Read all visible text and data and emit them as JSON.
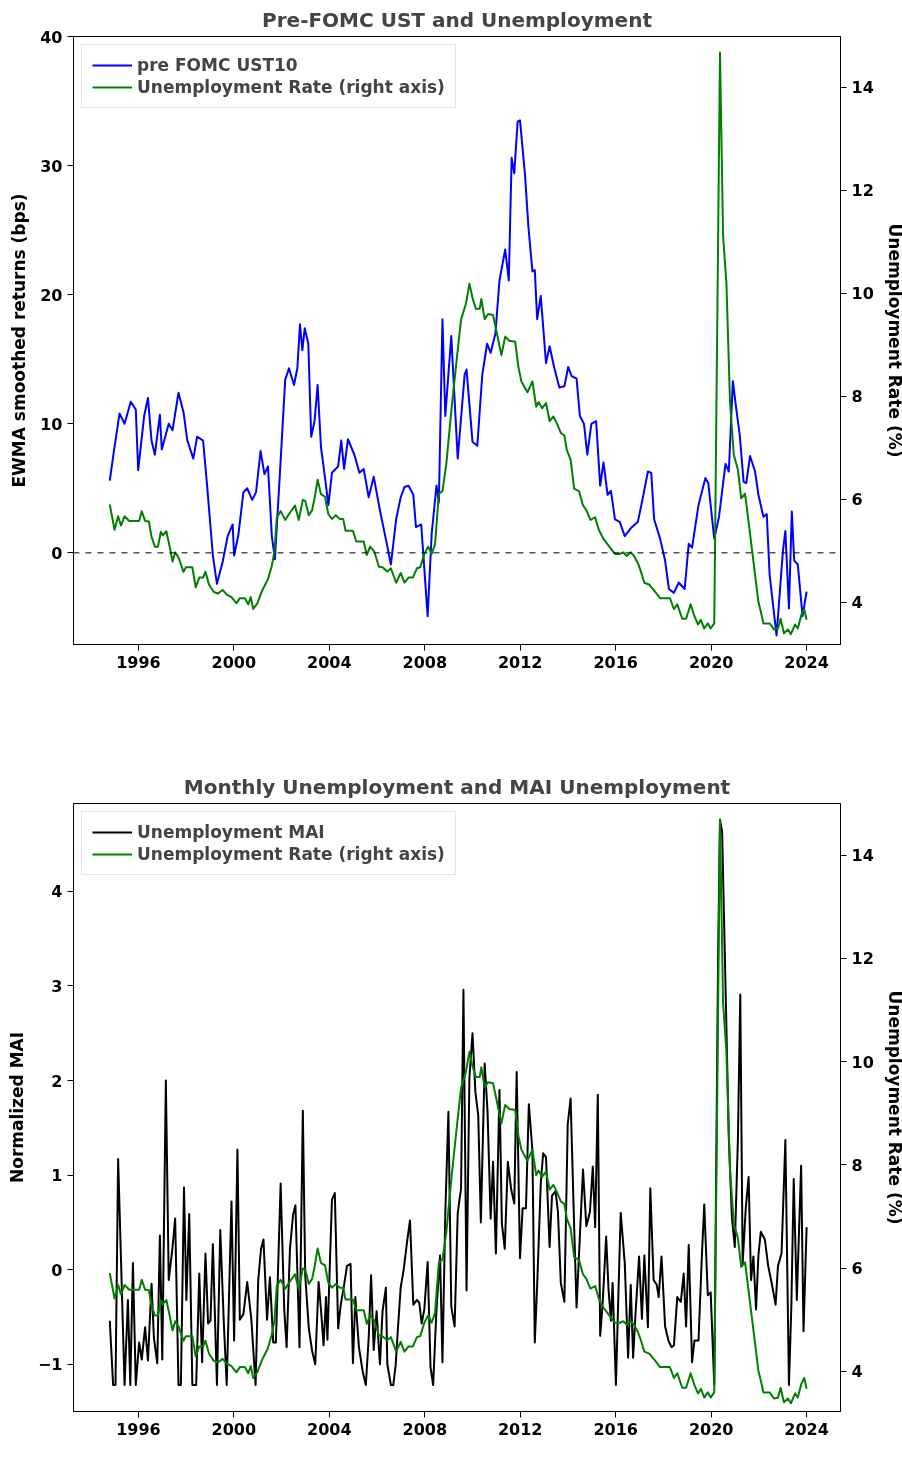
{
  "chart_data": [
    {
      "type": "line",
      "title": "Pre-FOMC UST and Unemployment",
      "ylabel": "EWMA smoothed returns (bps)",
      "y2label": "Unemployment Rate (%)",
      "xlim": [
        1993.28,
        2025.42
      ],
      "xticks": [
        1996,
        2000,
        2004,
        2008,
        2012,
        2016,
        2020,
        2024
      ],
      "ylim": [
        -7.1,
        40
      ],
      "yticks": [
        0,
        10,
        20,
        30,
        40
      ],
      "y2lim": [
        3.18,
        14.99
      ],
      "y2ticks": [
        4,
        6,
        8,
        10,
        12,
        14
      ],
      "grid": false,
      "legend": "top left",
      "ref_lines": [
        {
          "axis": "y",
          "value": 0,
          "color": "#000000",
          "line_style": "dashed"
        }
      ],
      "series": [
        {
          "name": "pre FOMC UST10",
          "color": "#0000ff",
          "x": [
            1994.8,
            1994.96,
            1995.21,
            1995.42,
            1995.68,
            1995.89,
            1995.99,
            1996.24,
            1996.4,
            1996.55,
            1996.69,
            1996.9,
            1996.98,
            1997.27,
            1997.43,
            1997.68,
            1997.89,
            1998.05,
            1998.3,
            1998.46,
            1998.71,
            1998.87,
            1999.12,
            1999.29,
            1999.53,
            1999.74,
            1999.95,
            2000.01,
            2000.19,
            2000.4,
            2000.56,
            2000.77,
            2000.93,
            2001.12,
            2001.28,
            2001.43,
            2001.59,
            2001.72,
            2001.94,
            2002.15,
            2002.31,
            2002.52,
            2002.66,
            2002.77,
            2002.87,
            2002.97,
            2003.12,
            2003.24,
            2003.38,
            2003.51,
            2003.65,
            2003.82,
            2003.96,
            2004.11,
            2004.37,
            2004.5,
            2004.62,
            2004.78,
            2005.05,
            2005.26,
            2005.44,
            2005.65,
            2005.86,
            2006.12,
            2006.43,
            2006.58,
            2006.8,
            2006.99,
            2007.15,
            2007.32,
            2007.52,
            2007.63,
            2007.85,
            2008.12,
            2008.29,
            2008.49,
            2008.59,
            2008.74,
            2008.86,
            2009.11,
            2009.38,
            2009.67,
            2009.75,
            2010.0,
            2010.2,
            2010.41,
            2010.61,
            2010.76,
            2010.96,
            2011.13,
            2011.37,
            2011.52,
            2011.64,
            2011.75,
            2011.89,
            2011.99,
            2012.2,
            2012.34,
            2012.51,
            2012.61,
            2012.71,
            2012.86,
            2013.08,
            2013.23,
            2013.43,
            2013.64,
            2013.85,
            2014.01,
            2014.15,
            2014.36,
            2014.5,
            2014.67,
            2014.81,
            2014.98,
            2015.18,
            2015.35,
            2015.49,
            2015.66,
            2015.8,
            2015.97,
            2016.17,
            2016.38,
            2016.63,
            2016.93,
            2017.14,
            2017.35,
            2017.49,
            2017.61,
            2017.86,
            2018.07,
            2018.23,
            2018.44,
            2018.64,
            2018.89,
            2019.06,
            2019.2,
            2019.47,
            2019.76,
            2019.88,
            2020.13,
            2020.33,
            2020.6,
            2020.74,
            2020.91,
            2021.05,
            2021.2,
            2021.36,
            2021.47,
            2021.63,
            2021.84,
            2021.98,
            2022.19,
            2022.33,
            2022.45,
            2022.74,
            2023.01,
            2023.11,
            2023.26,
            2023.38,
            2023.48,
            2023.63,
            2023.83,
            2024.0
          ],
          "values": [
            5.6,
            7.7,
            10.8,
            10.0,
            11.7,
            11.1,
            6.4,
            10.6,
            12.0,
            8.7,
            7.6,
            10.7,
            8.0,
            10.0,
            9.5,
            12.4,
            10.9,
            8.7,
            7.3,
            9.0,
            8.7,
            5.4,
            -0.2,
            -2.4,
            -0.7,
            1.3,
            2.2,
            -0.2,
            1.4,
            4.7,
            5.0,
            4.1,
            4.7,
            7.9,
            6.1,
            6.7,
            1.3,
            -0.5,
            6.5,
            13.4,
            14.3,
            13.0,
            14.3,
            17.7,
            15.7,
            17.4,
            16.2,
            9.0,
            10.2,
            13.0,
            8.2,
            5.8,
            3.7,
            6.2,
            6.7,
            8.7,
            6.5,
            8.8,
            7.6,
            6.2,
            6.5,
            4.3,
            5.9,
            3.3,
            0.5,
            -0.9,
            2.6,
            4.3,
            5.1,
            5.2,
            4.5,
            2.0,
            2.2,
            -4.9,
            1.5,
            5.2,
            3.9,
            18.1,
            10.6,
            16.8,
            7.3,
            13.8,
            14.2,
            8.6,
            8.3,
            13.8,
            16.2,
            15.5,
            17.0,
            21.1,
            23.5,
            21.1,
            30.6,
            29.4,
            33.4,
            33.5,
            29.3,
            25.3,
            21.8,
            21.9,
            18.1,
            19.9,
            14.7,
            16.0,
            14.3,
            12.8,
            12.9,
            14.4,
            13.7,
            13.5,
            10.6,
            10.0,
            7.6,
            10.0,
            10.2,
            5.2,
            7.0,
            4.5,
            4.8,
            2.6,
            2.4,
            1.3,
            1.9,
            2.4,
            4.3,
            6.3,
            6.2,
            2.6,
            1.1,
            -0.6,
            -2.8,
            -3.1,
            -2.3,
            -2.8,
            0.7,
            0.4,
            3.7,
            5.8,
            5.4,
            1.1,
            2.8,
            6.9,
            6.3,
            13.3,
            11.2,
            9.1,
            5.5,
            5.4,
            7.5,
            6.3,
            4.5,
            2.8,
            3.0,
            -1.7,
            -6.4,
            0.2,
            1.7,
            -4.3,
            3.2,
            -0.6,
            -0.9,
            -4.9,
            -3.0
          ]
        },
        {
          "name": "Unemployment Rate (right axis)",
          "color": "#008000",
          "axis": "y2",
          "x": [
            1994.8,
            1995.0,
            1995.15,
            1995.27,
            1995.42,
            1995.62,
            1996.03,
            1996.14,
            1996.28,
            1996.44,
            1996.55,
            1996.69,
            1996.82,
            1996.94,
            1997.02,
            1997.17,
            1997.31,
            1997.43,
            1997.54,
            1997.68,
            1997.89,
            1997.99,
            1998.26,
            1998.4,
            1998.55,
            1998.71,
            1998.81,
            1998.96,
            1999.16,
            1999.33,
            1999.53,
            1999.7,
            1999.9,
            2000.11,
            2000.25,
            2000.46,
            2000.6,
            2000.71,
            2000.81,
            2000.98,
            2001.18,
            2001.43,
            2001.59,
            2001.7,
            2001.8,
            2001.96,
            2002.15,
            2002.35,
            2002.56,
            2002.72,
            2002.89,
            2002.99,
            2003.14,
            2003.28,
            2003.38,
            2003.51,
            2003.65,
            2003.82,
            2003.96,
            2004.11,
            2004.27,
            2004.43,
            2004.58,
            2004.68,
            2004.99,
            2005.13,
            2005.44,
            2005.57,
            2005.71,
            2005.88,
            2006.08,
            2006.23,
            2006.43,
            2006.58,
            2006.8,
            2006.99,
            2007.15,
            2007.32,
            2007.5,
            2007.67,
            2007.81,
            2007.98,
            2008.14,
            2008.29,
            2008.43,
            2008.59,
            2008.74,
            2008.9,
            2009.11,
            2009.32,
            2009.52,
            2009.73,
            2009.87,
            2010.0,
            2010.14,
            2010.3,
            2010.37,
            2010.51,
            2010.65,
            2010.86,
            2011.02,
            2011.21,
            2011.37,
            2011.54,
            2011.79,
            2011.93,
            2012.05,
            2012.3,
            2012.51,
            2012.67,
            2012.77,
            2012.92,
            2013.08,
            2013.23,
            2013.39,
            2013.54,
            2013.7,
            2013.85,
            2013.95,
            2014.11,
            2014.26,
            2014.46,
            2014.63,
            2014.77,
            2014.94,
            2015.14,
            2015.29,
            2015.49,
            2015.7,
            2015.97,
            2016.17,
            2016.32,
            2016.46,
            2016.63,
            2016.77,
            2016.93,
            2017.04,
            2017.2,
            2017.41,
            2017.66,
            2017.86,
            2018.27,
            2018.44,
            2018.58,
            2018.79,
            2018.95,
            2019.14,
            2019.3,
            2019.45,
            2019.57,
            2019.71,
            2019.86,
            2019.98,
            2020.13,
            2020.37,
            2020.5,
            2020.64,
            2020.79,
            2020.95,
            2021.12,
            2021.26,
            2021.42,
            2021.57,
            2021.77,
            2021.98,
            2022.08,
            2022.19,
            2022.45,
            2022.64,
            2022.8,
            2022.91,
            2023.05,
            2023.22,
            2023.34,
            2023.52,
            2023.63,
            2023.79,
            2023.9,
            2024.0
          ],
          "values": [
            5.9,
            5.41,
            5.67,
            5.49,
            5.67,
            5.58,
            5.58,
            5.77,
            5.58,
            5.57,
            5.27,
            5.08,
            5.08,
            5.37,
            5.3,
            5.38,
            5.08,
            4.79,
            4.97,
            4.87,
            4.59,
            4.68,
            4.68,
            4.29,
            4.48,
            4.48,
            4.59,
            4.34,
            4.2,
            4.17,
            4.24,
            4.15,
            4.1,
            3.98,
            4.08,
            4.08,
            3.96,
            4.1,
            3.87,
            3.98,
            4.22,
            4.45,
            4.71,
            4.99,
            5.65,
            5.77,
            5.6,
            5.74,
            5.88,
            5.6,
            5.99,
            5.97,
            5.69,
            5.79,
            6.02,
            6.38,
            6.1,
            6.05,
            5.71,
            5.62,
            5.69,
            5.62,
            5.62,
            5.39,
            5.39,
            5.18,
            5.18,
            4.92,
            5.08,
            4.99,
            4.69,
            4.68,
            4.6,
            4.66,
            4.38,
            4.57,
            4.38,
            4.48,
            4.48,
            4.66,
            4.68,
            4.94,
            5.08,
            4.94,
            5.13,
            6.11,
            6.16,
            6.68,
            7.71,
            8.64,
            9.49,
            9.81,
            10.19,
            9.91,
            9.7,
            9.7,
            9.89,
            9.5,
            9.6,
            9.58,
            9.23,
            8.8,
            9.16,
            9.08,
            9.06,
            8.55,
            8.29,
            8.08,
            8.29,
            7.8,
            7.89,
            7.77,
            7.87,
            7.52,
            7.61,
            7.47,
            7.29,
            7.24,
            6.96,
            6.77,
            6.21,
            6.16,
            5.88,
            5.79,
            5.6,
            5.65,
            5.41,
            5.23,
            5.1,
            4.94,
            4.94,
            4.97,
            4.9,
            4.97,
            4.9,
            4.76,
            4.62,
            4.38,
            4.34,
            4.2,
            4.08,
            4.08,
            3.87,
            3.96,
            3.68,
            3.68,
            3.96,
            3.73,
            3.57,
            3.66,
            3.49,
            3.59,
            3.49,
            3.59,
            14.68,
            11.12,
            10.19,
            7.89,
            6.86,
            6.58,
            6.02,
            6.11,
            5.55,
            4.8,
            4.01,
            3.82,
            3.59,
            3.59,
            3.47,
            3.49,
            3.68,
            3.4,
            3.47,
            3.38,
            3.57,
            3.49,
            3.77,
            3.87,
            3.66
          ]
        }
      ]
    },
    {
      "type": "line",
      "title": "Monthly Unemployment and MAI Unemployment",
      "ylabel": "Normalized MAI",
      "y2label": "Unemployment Rate (%)",
      "xlim": [
        1993.28,
        2025.42
      ],
      "xticks": [
        1996,
        2000,
        2004,
        2008,
        2012,
        2016,
        2020,
        2024
      ],
      "ylim": [
        -1.5,
        4.93
      ],
      "yticks": [
        {
          "value": -1,
          "label": "−1"
        },
        0,
        1,
        2,
        3,
        4
      ],
      "y2lim": [
        3.22,
        15.0
      ],
      "y2ticks": [
        4,
        6,
        8,
        10,
        12,
        14
      ],
      "grid": false,
      "legend": "top left",
      "series": [
        {
          "name": "Unemployment MAI",
          "color": "#000000",
          "x": [
            1994.8,
            1994.94,
            1995.04,
            1995.15,
            1995.42,
            1995.56,
            1995.66,
            1995.77,
            1995.89,
            1996.03,
            1996.14,
            1996.28,
            1996.4,
            1996.55,
            1996.65,
            1996.79,
            1996.9,
            1997.0,
            1997.15,
            1997.27,
            1997.41,
            1997.54,
            1997.68,
            1997.78,
            1997.91,
            1998.01,
            1998.13,
            1998.26,
            1998.42,
            1998.55,
            1998.67,
            1998.81,
            1998.92,
            1999.02,
            1999.12,
            1999.29,
            1999.43,
            1999.58,
            1999.7,
            1999.9,
            2000.01,
            2000.15,
            2000.25,
            2000.4,
            2000.56,
            2000.73,
            2000.91,
            2001.02,
            2001.14,
            2001.24,
            2001.39,
            2001.51,
            2001.65,
            2001.76,
            2001.96,
            2002.11,
            2002.21,
            2002.35,
            2002.48,
            2002.58,
            2002.75,
            2002.89,
            2002.99,
            2003.14,
            2003.28,
            2003.41,
            2003.55,
            2003.65,
            2003.76,
            2003.86,
            2003.92,
            2004.11,
            2004.23,
            2004.37,
            2004.48,
            2004.62,
            2004.74,
            2004.89,
            2004.99,
            2005.09,
            2005.24,
            2005.4,
            2005.53,
            2005.65,
            2005.75,
            2005.86,
            2005.98,
            2006.12,
            2006.23,
            2006.37,
            2006.43,
            2006.58,
            2006.68,
            2006.78,
            2006.88,
            2006.99,
            2007.11,
            2007.26,
            2007.38,
            2007.52,
            2007.67,
            2007.77,
            2007.87,
            2007.98,
            2008.12,
            2008.24,
            2008.35,
            2008.49,
            2008.64,
            2008.74,
            2008.86,
            2008.99,
            2009.11,
            2009.25,
            2009.38,
            2009.52,
            2009.62,
            2009.75,
            2009.87,
            2010.0,
            2010.12,
            2010.24,
            2010.35,
            2010.51,
            2010.63,
            2010.76,
            2010.86,
            2010.98,
            2011.13,
            2011.23,
            2011.35,
            2011.48,
            2011.62,
            2011.75,
            2011.85,
            2011.99,
            2012.1,
            2012.24,
            2012.36,
            2012.51,
            2012.61,
            2012.71,
            2012.86,
            2012.96,
            2013.08,
            2013.23,
            2013.33,
            2013.48,
            2013.58,
            2013.7,
            2013.85,
            2013.99,
            2014.11,
            2014.26,
            2014.36,
            2014.5,
            2014.63,
            2014.77,
            2014.92,
            2015.04,
            2015.14,
            2015.25,
            2015.35,
            2015.45,
            2015.6,
            2015.7,
            2015.8,
            2015.87,
            2016.01,
            2016.11,
            2016.21,
            2016.38,
            2016.52,
            2016.63,
            2016.73,
            2016.83,
            2016.98,
            2017.1,
            2017.2,
            2017.35,
            2017.45,
            2017.59,
            2017.72,
            2017.8,
            2017.92,
            2018.07,
            2018.21,
            2018.34,
            2018.44,
            2018.58,
            2018.73,
            2018.85,
            2018.95,
            2019.06,
            2019.2,
            2019.3,
            2019.47,
            2019.61,
            2019.71,
            2019.86,
            2019.98,
            2020.13,
            2020.29,
            2020.37,
            2020.46,
            2020.58,
            2020.74,
            2020.87,
            2020.99,
            2021.12,
            2021.22,
            2021.32,
            2021.45,
            2021.57,
            2021.67,
            2021.77,
            2021.88,
            2021.98,
            2022.08,
            2022.25,
            2022.39,
            2022.55,
            2022.7,
            2022.8,
            2022.95,
            2023.11,
            2023.26,
            2023.36,
            2023.46,
            2023.59,
            2023.77,
            2023.87,
            2024.0
          ],
          "values": [
            -0.54,
            -1.22,
            -1.22,
            1.17,
            -1.22,
            -0.32,
            -1.22,
            0.07,
            -1.22,
            -0.77,
            -0.95,
            -0.61,
            -0.96,
            -0.15,
            -0.72,
            -0.99,
            0.36,
            -0.95,
            2.0,
            -0.11,
            0.19,
            0.54,
            -1.22,
            -1.22,
            0.87,
            -0.32,
            0.59,
            -1.22,
            -1.22,
            -0.04,
            -0.98,
            0.17,
            -0.57,
            -0.54,
            0.27,
            -1.22,
            0.42,
            -0.57,
            -1.22,
            0.72,
            -0.75,
            1.27,
            -0.53,
            -0.47,
            -0.13,
            -0.52,
            -1.22,
            -0.11,
            0.22,
            0.32,
            -0.53,
            -0.08,
            -0.77,
            -0.77,
            0.91,
            -0.42,
            -0.82,
            0.22,
            0.58,
            0.68,
            -0.82,
            1.68,
            -0.06,
            -0.62,
            -0.86,
            -1.0,
            -0.13,
            -0.42,
            -0.8,
            -0.29,
            -0.74,
            0.74,
            0.81,
            -0.62,
            -0.37,
            -0.16,
            0.04,
            0.06,
            -0.99,
            -0.29,
            -0.82,
            -1.08,
            -1.22,
            -0.72,
            -0.06,
            -0.85,
            -0.44,
            -1.0,
            -0.44,
            -0.19,
            -1.0,
            -1.22,
            -1.22,
            -1.01,
            -0.6,
            -0.19,
            -0.01,
            0.3,
            0.52,
            -0.37,
            -0.32,
            -0.35,
            -0.57,
            -0.42,
            0.08,
            -1.03,
            -1.22,
            -0.42,
            0.15,
            -0.98,
            0.6,
            1.67,
            -0.39,
            -0.6,
            0.6,
            0.86,
            2.96,
            -0.22,
            2.03,
            2.5,
            1.88,
            1.63,
            0.5,
            2.18,
            1.67,
            0.54,
            1.14,
            0.17,
            1.9,
            0.49,
            0.22,
            1.14,
            0.85,
            0.7,
            2.09,
            0.12,
            0.65,
            0.65,
            1.75,
            1.26,
            -0.77,
            -0.16,
            0.91,
            1.23,
            1.19,
            0.24,
            0.78,
            0.83,
            0.61,
            -0.14,
            -0.34,
            1.54,
            1.81,
            0.45,
            -0.4,
            0.36,
            1.06,
            0.46,
            0.61,
            1.09,
            0.45,
            1.85,
            -0.7,
            -0.37,
            0.35,
            -0.21,
            -0.54,
            -0.14,
            -1.22,
            -0.29,
            0.6,
            0.07,
            -0.93,
            -0.16,
            -0.93,
            -0.47,
            0.14,
            -0.52,
            0.15,
            -0.61,
            0.86,
            -0.11,
            -0.16,
            -0.29,
            0.14,
            -0.6,
            -0.75,
            -0.82,
            -0.8,
            -0.29,
            -0.34,
            -0.04,
            -0.6,
            0.26,
            -0.98,
            -0.75,
            -0.75,
            0.14,
            0.69,
            -0.27,
            -0.24,
            -1.22,
            3.3,
            4.76,
            4.63,
            3.25,
            1.39,
            0.55,
            0.24,
            1.37,
            2.91,
            0.07,
            0.65,
            0.98,
            -0.11,
            0.14,
            -0.42,
            0.15,
            0.4,
            0.32,
            0.04,
            -0.16,
            -0.37,
            0.04,
            0.17,
            1.37,
            -1.22,
            -0.39,
            0.96,
            -0.32,
            1.1,
            -0.65,
            0.45
          ]
        },
        {
          "name": "Unemployment Rate (right axis)",
          "color": "#008000",
          "axis": "y2",
          "x": [
            1994.8,
            1995.0,
            1995.15,
            1995.27,
            1995.42,
            1995.62,
            1996.03,
            1996.14,
            1996.28,
            1996.44,
            1996.55,
            1996.69,
            1996.82,
            1996.94,
            1997.02,
            1997.17,
            1997.31,
            1997.43,
            1997.54,
            1997.68,
            1997.89,
            1997.99,
            1998.26,
            1998.4,
            1998.55,
            1998.71,
            1998.81,
            1998.96,
            1999.16,
            1999.33,
            1999.53,
            1999.7,
            1999.9,
            2000.11,
            2000.25,
            2000.46,
            2000.6,
            2000.71,
            2000.81,
            2000.98,
            2001.18,
            2001.43,
            2001.59,
            2001.7,
            2001.8,
            2001.96,
            2002.15,
            2002.35,
            2002.56,
            2002.72,
            2002.89,
            2002.99,
            2003.14,
            2003.28,
            2003.38,
            2003.51,
            2003.65,
            2003.82,
            2003.96,
            2004.11,
            2004.27,
            2004.43,
            2004.58,
            2004.68,
            2004.99,
            2005.13,
            2005.44,
            2005.57,
            2005.71,
            2005.88,
            2006.08,
            2006.23,
            2006.43,
            2006.58,
            2006.8,
            2006.99,
            2007.15,
            2007.32,
            2007.5,
            2007.67,
            2007.81,
            2007.98,
            2008.14,
            2008.29,
            2008.43,
            2008.59,
            2008.74,
            2008.9,
            2009.11,
            2009.32,
            2009.52,
            2009.73,
            2009.87,
            2010.0,
            2010.14,
            2010.3,
            2010.37,
            2010.51,
            2010.65,
            2010.86,
            2011.02,
            2011.21,
            2011.37,
            2011.54,
            2011.79,
            2011.93,
            2012.05,
            2012.3,
            2012.51,
            2012.67,
            2012.77,
            2012.92,
            2013.08,
            2013.23,
            2013.39,
            2013.54,
            2013.7,
            2013.85,
            2013.95,
            2014.11,
            2014.26,
            2014.46,
            2014.63,
            2014.77,
            2014.94,
            2015.14,
            2015.29,
            2015.49,
            2015.7,
            2015.97,
            2016.17,
            2016.32,
            2016.46,
            2016.63,
            2016.77,
            2016.93,
            2017.04,
            2017.2,
            2017.41,
            2017.66,
            2017.86,
            2018.27,
            2018.44,
            2018.58,
            2018.79,
            2018.95,
            2019.14,
            2019.3,
            2019.45,
            2019.57,
            2019.71,
            2019.86,
            2019.98,
            2020.13,
            2020.37,
            2020.5,
            2020.64,
            2020.79,
            2020.95,
            2021.12,
            2021.26,
            2021.42,
            2021.57,
            2021.77,
            2021.98,
            2022.08,
            2022.19,
            2022.45,
            2022.64,
            2022.8,
            2022.91,
            2023.05,
            2023.22,
            2023.34,
            2023.52,
            2023.63,
            2023.79,
            2023.9,
            2024.0
          ],
          "values": [
            5.9,
            5.41,
            5.67,
            5.49,
            5.67,
            5.58,
            5.58,
            5.77,
            5.58,
            5.57,
            5.27,
            5.08,
            5.08,
            5.37,
            5.3,
            5.38,
            5.08,
            4.79,
            4.97,
            4.87,
            4.59,
            4.68,
            4.68,
            4.29,
            4.48,
            4.48,
            4.59,
            4.34,
            4.2,
            4.17,
            4.24,
            4.15,
            4.1,
            3.98,
            4.08,
            4.08,
            3.96,
            4.1,
            3.87,
            3.98,
            4.22,
            4.45,
            4.71,
            4.99,
            5.65,
            5.77,
            5.6,
            5.74,
            5.88,
            5.6,
            5.99,
            5.97,
            5.69,
            5.79,
            6.02,
            6.38,
            6.1,
            6.05,
            5.71,
            5.62,
            5.69,
            5.62,
            5.62,
            5.39,
            5.39,
            5.18,
            5.18,
            4.92,
            5.08,
            4.99,
            4.69,
            4.68,
            4.6,
            4.66,
            4.38,
            4.57,
            4.38,
            4.48,
            4.48,
            4.66,
            4.68,
            4.94,
            5.08,
            4.94,
            5.13,
            6.11,
            6.16,
            6.68,
            7.71,
            8.64,
            9.49,
            9.81,
            10.19,
            9.91,
            9.7,
            9.7,
            9.89,
            9.5,
            9.6,
            9.58,
            9.23,
            8.8,
            9.16,
            9.08,
            9.06,
            8.55,
            8.29,
            8.08,
            8.29,
            7.8,
            7.89,
            7.77,
            7.87,
            7.52,
            7.61,
            7.47,
            7.29,
            7.24,
            6.96,
            6.77,
            6.21,
            6.16,
            5.88,
            5.79,
            5.6,
            5.65,
            5.41,
            5.23,
            5.1,
            4.94,
            4.94,
            4.97,
            4.9,
            4.97,
            4.9,
            4.76,
            4.62,
            4.38,
            4.34,
            4.2,
            4.08,
            4.08,
            3.87,
            3.96,
            3.68,
            3.68,
            3.96,
            3.73,
            3.57,
            3.66,
            3.49,
            3.59,
            3.49,
            3.59,
            14.68,
            11.12,
            10.19,
            7.89,
            6.86,
            6.58,
            6.02,
            6.11,
            5.55,
            4.8,
            4.01,
            3.82,
            3.59,
            3.59,
            3.47,
            3.49,
            3.68,
            3.4,
            3.47,
            3.38,
            3.57,
            3.49,
            3.77,
            3.87,
            3.66
          ]
        }
      ]
    }
  ]
}
